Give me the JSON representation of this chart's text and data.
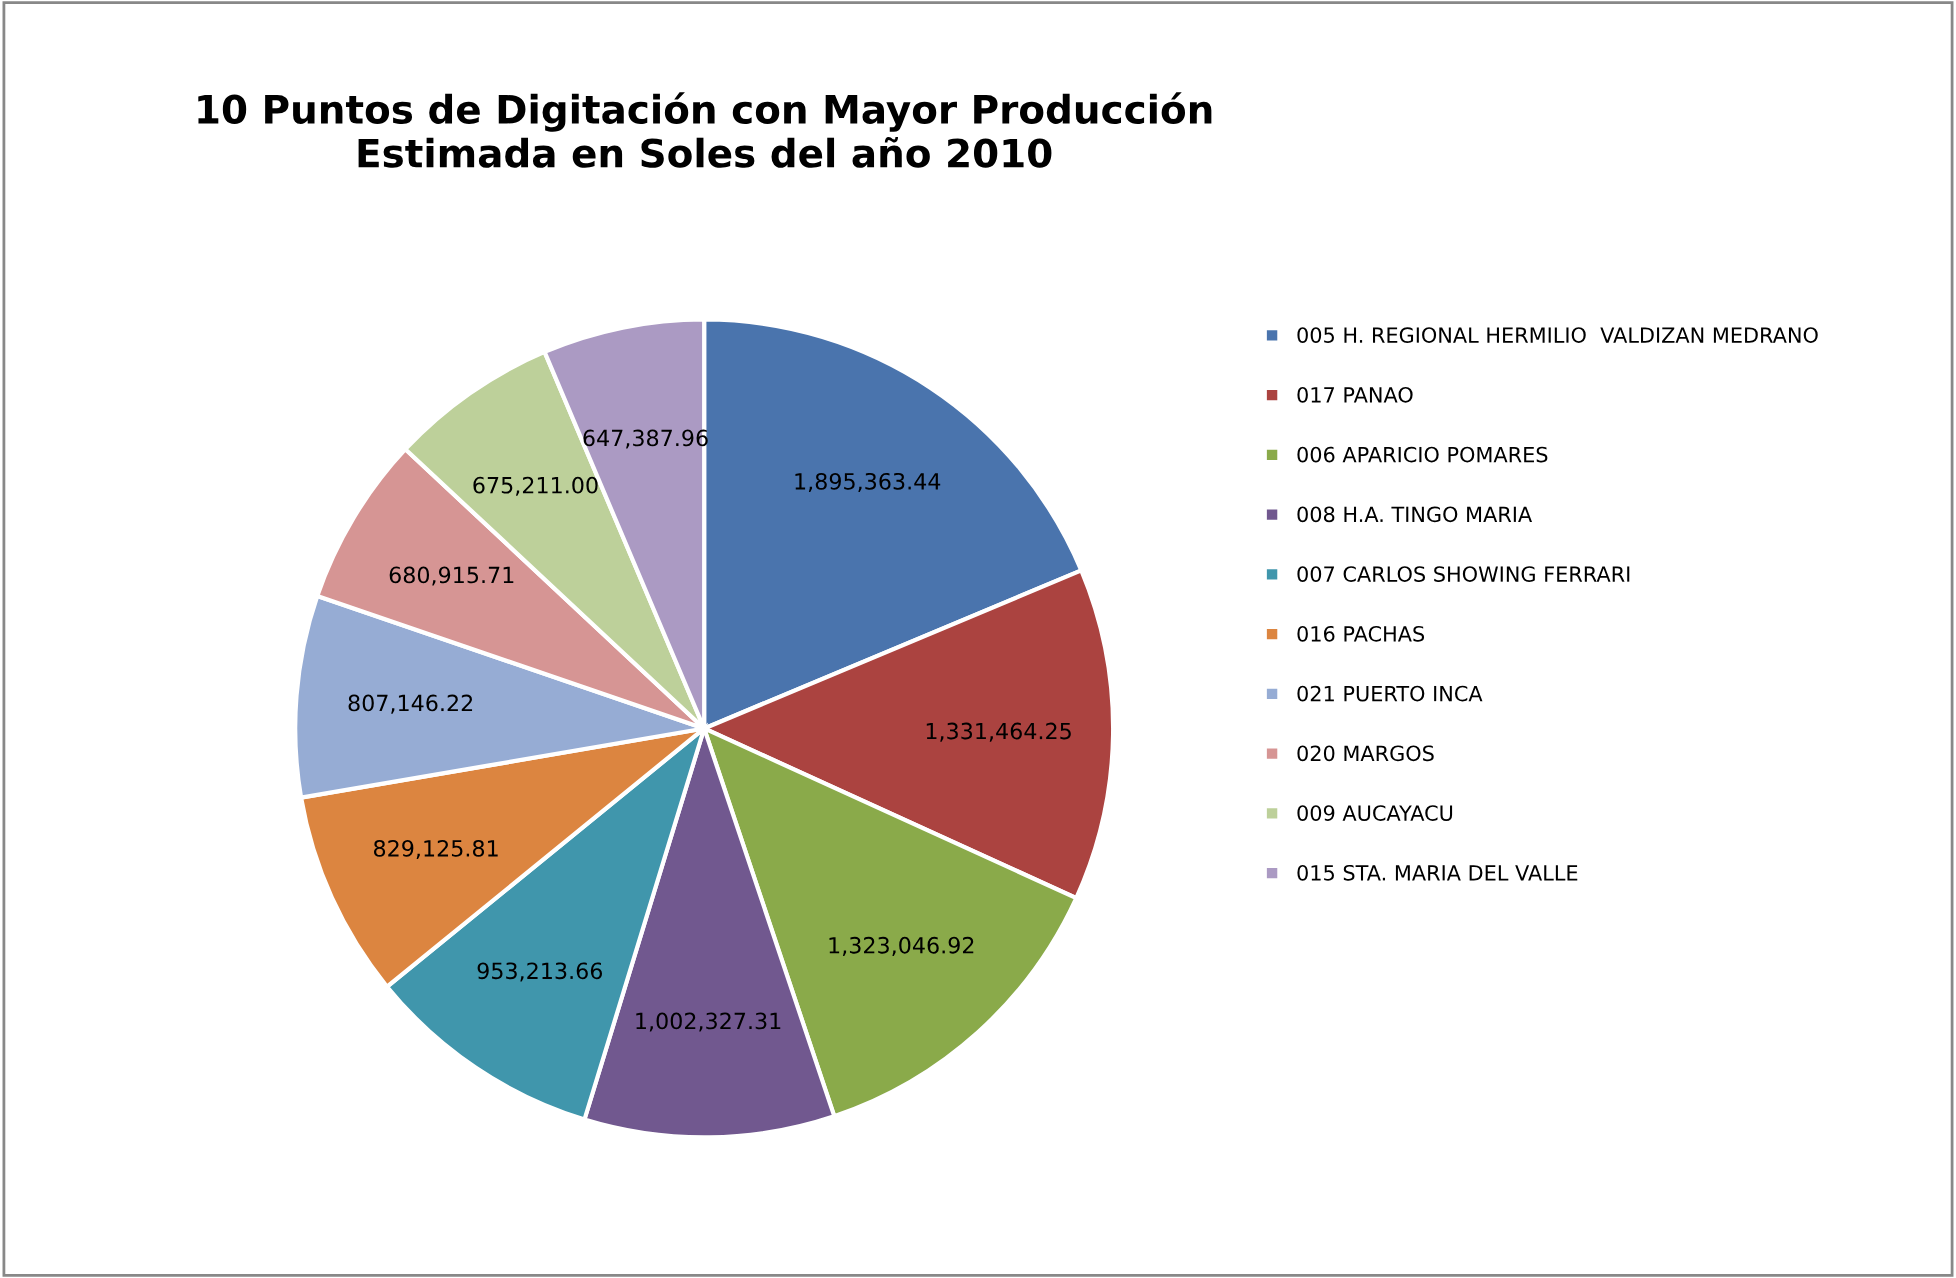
{
  "chart_data": {
    "type": "pie",
    "title": "10 Puntos de Digitación con Mayor Producción\nEstimada en Soles del año 2010",
    "categories": [
      "005 H. REGIONAL HERMILIO  VALDIZAN MEDRANO",
      "017 PANAO",
      "006 APARICIO POMARES",
      "008 H.A. TINGO MARIA",
      "007 CARLOS SHOWING FERRARI",
      "016 PACHAS",
      "021 PUERTO INCA",
      "020 MARGOS",
      "009 AUCAYACU",
      "015 STA. MARIA DEL VALLE"
    ],
    "values": [
      1895363.44,
      1331464.25,
      1323046.92,
      1002327.31,
      953213.66,
      829125.81,
      807146.22,
      680915.71,
      675211.0,
      647387.96
    ],
    "value_labels": [
      "1,895,363.44",
      "1,331,464.25",
      "1,323,046.92",
      "1,002,327.31",
      "953,213.66",
      "829,125.81",
      "807,146.22",
      "680,915.71",
      "675,211.00",
      "647,387.96"
    ],
    "colors": [
      "#4a74ad",
      "#ab4340",
      "#8aaa4a",
      "#71588f",
      "#4096ac",
      "#dc8540",
      "#96acd4",
      "#d69594",
      "#bdd09a",
      "#ab9ac3"
    ],
    "legend": "right"
  }
}
